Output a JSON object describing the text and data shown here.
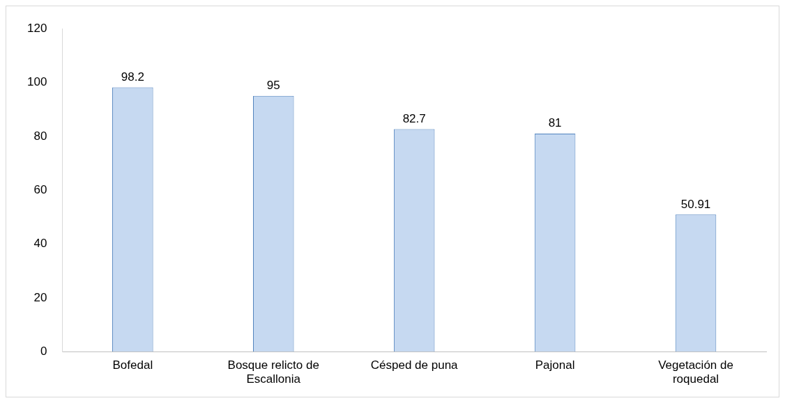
{
  "chart_data": {
    "type": "bar",
    "categories": [
      "Bofedal",
      "Bosque relicto de Escallonia",
      "Césped de puna",
      "Pajonal",
      "Vegetación de roquedal"
    ],
    "values": [
      98.2,
      95,
      82.7,
      81,
      50.91
    ],
    "color": "#c6d9f1",
    "ylim": [
      0,
      120
    ],
    "yticks": [
      0,
      20,
      40,
      60,
      80,
      100,
      120
    ],
    "grid": false,
    "legend": false,
    "data_labels": true
  }
}
